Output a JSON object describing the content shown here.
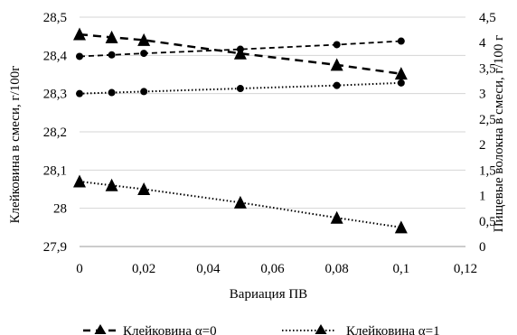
{
  "chart_data": {
    "type": "line",
    "title": "",
    "xlabel": "Вариация ПВ",
    "ylabel_left": "Клейковина в смеси, г/100г",
    "ylabel_right": "Пищевые волокна в смеси, г/100 г",
    "x_ticks": [
      "0",
      "0,02",
      "0,04",
      "0,06",
      "0,08",
      "0,1",
      "0,12"
    ],
    "y_left_ticks": [
      "27,9",
      "28",
      "28,1",
      "28,2",
      "28,3",
      "28,4",
      "28,5"
    ],
    "y_right_ticks": [
      "0",
      "0,5",
      "1",
      "1,5",
      "2",
      "2,5",
      "3",
      "3,5",
      "4",
      "4,5"
    ],
    "xlim": [
      0,
      0.12
    ],
    "ylim_left": [
      27.9,
      28.5
    ],
    "ylim_right": [
      0,
      4.5
    ],
    "grid": "horizontal",
    "legend_position": "bottom",
    "series": [
      {
        "name": "Клейковина α=0",
        "axis": "left",
        "marker": "triangle",
        "line": "dashed",
        "x": [
          0,
          0.01,
          0.02,
          0.05,
          0.08,
          0.1
        ],
        "values": [
          28.455,
          28.447,
          28.44,
          28.405,
          28.375,
          28.352
        ]
      },
      {
        "name": "Клейковина α=1",
        "axis": "left",
        "marker": "triangle",
        "line": "dotted",
        "x": [
          0,
          0.01,
          0.02,
          0.05,
          0.08,
          0.1
        ],
        "values": [
          28.07,
          28.06,
          28.05,
          28.015,
          27.975,
          27.95
        ]
      },
      {
        "axis": "right",
        "marker": "circle",
        "line": "dashed",
        "x": [
          0,
          0.01,
          0.02,
          0.05,
          0.08,
          0.1
        ],
        "values": [
          3.73,
          3.76,
          3.79,
          3.87,
          3.96,
          4.03
        ]
      },
      {
        "axis": "right",
        "marker": "circle",
        "line": "dotted",
        "x": [
          0,
          0.01,
          0.02,
          0.05,
          0.08,
          0.1
        ],
        "values": [
          3.0,
          3.02,
          3.04,
          3.1,
          3.16,
          3.21
        ]
      }
    ]
  }
}
